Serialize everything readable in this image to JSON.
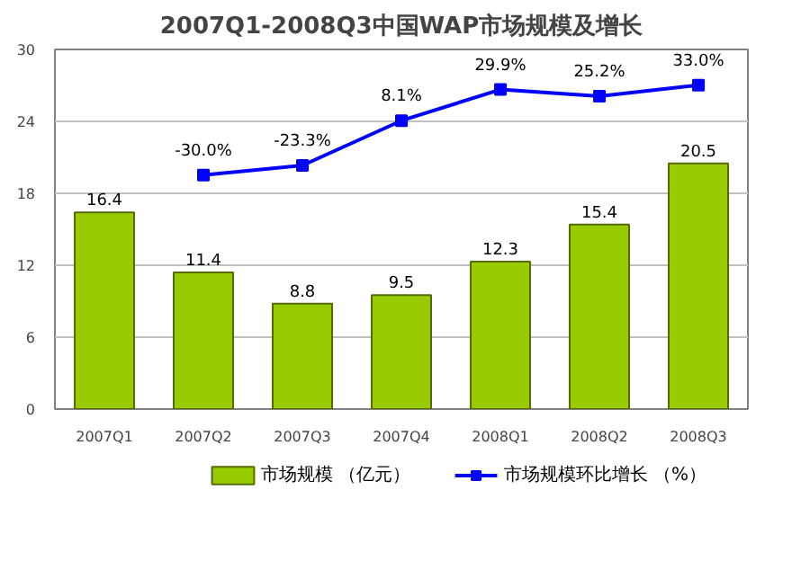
{
  "chart_data": {
    "type": "bar",
    "title": "2007Q1-2008Q3中国WAP市场规模及增长",
    "categories": [
      "2007Q1",
      "2007Q2",
      "2007Q3",
      "2007Q4",
      "2008Q1",
      "2008Q2",
      "2008Q3"
    ],
    "series": [
      {
        "name": "市场规模 （亿元）",
        "color": "#99cc00",
        "values": [
          16.4,
          11.4,
          8.8,
          9.5,
          12.3,
          15.4,
          20.5
        ],
        "value_labels": [
          "16.4",
          "11.4",
          "8.8",
          "9.5",
          "12.3",
          "15.4",
          "20.5"
        ]
      },
      {
        "name": "市场规模环比增长 （%）",
        "type": "line",
        "axis": "y2",
        "color": "#0000ff",
        "marker": "square",
        "values": [
          null,
          -30.0,
          -23.3,
          8.1,
          29.9,
          25.2,
          33.0
        ],
        "value_labels": [
          null,
          "-30.0%",
          "-23.3%",
          "8.1%",
          "29.9%",
          "25.2%",
          "33.0%"
        ]
      }
    ],
    "ylim": [
      0,
      30
    ],
    "yticks": [
      0,
      6,
      12,
      18,
      24,
      30
    ],
    "y2lim": [
      -194,
      58
    ],
    "grid": "y",
    "legend": "bottom",
    "line_style": "solid"
  }
}
